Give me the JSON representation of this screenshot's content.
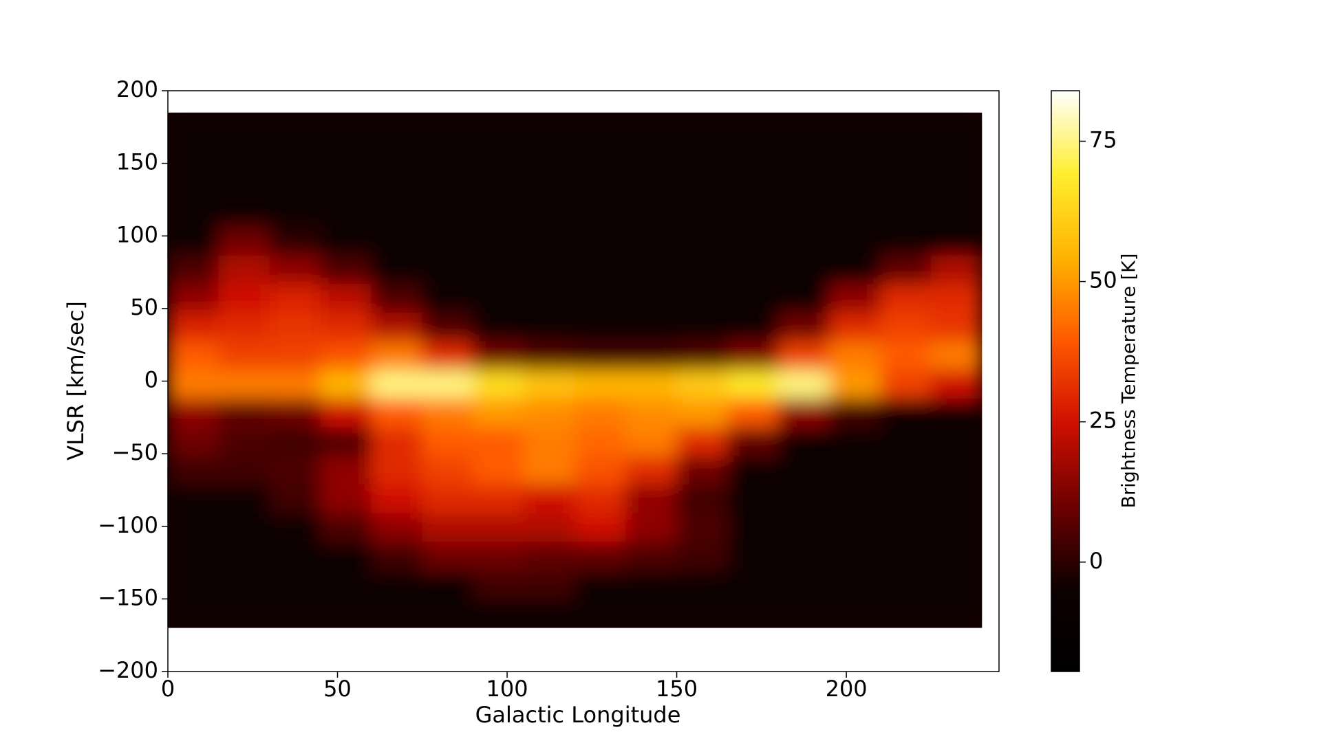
{
  "chart_data": {
    "type": "heatmap",
    "xlabel": "Galactic Longitude",
    "ylabel": "VLSR [km/sec]",
    "xlim": [
      0,
      245
    ],
    "ylim": [
      -200,
      200
    ],
    "xticks": [
      0,
      50,
      100,
      150,
      200
    ],
    "yticks": [
      {
        "value": -200,
        "label": "−200"
      },
      {
        "value": -150,
        "label": "−150"
      },
      {
        "value": -100,
        "label": "−100"
      },
      {
        "value": -50,
        "label": "−50"
      },
      0,
      50,
      100,
      150,
      200
    ],
    "extent": [
      0,
      240,
      -170,
      185
    ],
    "values": [
      [
        -5,
        -5,
        -5,
        -5,
        -5,
        -5,
        -5,
        -5,
        -5,
        -5,
        -5,
        -5,
        -5,
        -5,
        -5,
        -5
      ],
      [
        -5,
        -5,
        -5,
        -5,
        -5,
        -5,
        -5,
        -5,
        -5,
        -5,
        -5,
        -5,
        -5,
        -5,
        -5,
        -5
      ],
      [
        -5,
        -5,
        -5,
        -5,
        -5,
        -5,
        -5,
        -5,
        -5,
        -5,
        -5,
        -5,
        -5,
        -5,
        -5,
        -5
      ],
      [
        -5,
        -5,
        -5,
        -5,
        -5,
        -5,
        -5,
        -5,
        -5,
        -5,
        -5,
        -5,
        -5,
        -5,
        -5,
        -5
      ],
      [
        -5,
        10,
        0,
        -5,
        -5,
        -5,
        -5,
        -5,
        -5,
        -5,
        -5,
        -5,
        -5,
        -5,
        -5,
        -5
      ],
      [
        5,
        20,
        15,
        5,
        -5,
        -5,
        -5,
        -5,
        -5,
        -5,
        -5,
        -5,
        -5,
        -5,
        8,
        20
      ],
      [
        15,
        25,
        28,
        22,
        5,
        -5,
        -5,
        -5,
        -5,
        -5,
        -5,
        -5,
        -5,
        15,
        30,
        30
      ],
      [
        28,
        30,
        32,
        30,
        20,
        5,
        -5,
        -5,
        -5,
        -5,
        -5,
        -5,
        10,
        30,
        35,
        32
      ],
      [
        40,
        35,
        35,
        38,
        45,
        30,
        10,
        5,
        3,
        3,
        5,
        12,
        35,
        45,
        40,
        45
      ],
      [
        45,
        45,
        45,
        55,
        75,
        75,
        65,
        58,
        55,
        55,
        60,
        68,
        75,
        50,
        35,
        25
      ],
      [
        15,
        8,
        10,
        25,
        40,
        45,
        50,
        48,
        45,
        48,
        50,
        40,
        15,
        3,
        -5,
        -5
      ],
      [
        10,
        5,
        3,
        5,
        30,
        40,
        40,
        45,
        42,
        45,
        30,
        8,
        -5,
        -5,
        -5,
        -5
      ],
      [
        3,
        3,
        5,
        15,
        30,
        35,
        40,
        45,
        38,
        30,
        10,
        -5,
        -5,
        -5,
        -5,
        -5
      ],
      [
        -5,
        -5,
        3,
        15,
        25,
        30,
        30,
        25,
        30,
        15,
        3,
        -5,
        -5,
        -5,
        -5,
        -5
      ],
      [
        -5,
        -5,
        -5,
        5,
        15,
        20,
        20,
        20,
        25,
        15,
        5,
        -5,
        -5,
        -5,
        -5,
        -5
      ],
      [
        -5,
        -5,
        -5,
        -5,
        3,
        10,
        10,
        8,
        8,
        5,
        3,
        -5,
        -5,
        -5,
        -5,
        -5
      ],
      [
        -5,
        -5,
        -5,
        -5,
        -5,
        -5,
        3,
        3,
        -5,
        -5,
        -5,
        -5,
        -5,
        -5,
        -5,
        -5
      ],
      [
        -5,
        -5,
        -5,
        -5,
        -5,
        -5,
        -5,
        -5,
        -5,
        -5,
        -5,
        -5,
        -5,
        -5,
        -5,
        -5
      ]
    ],
    "colorbar": {
      "label": "Brightness Temperature [K]",
      "lim": [
        -19.5,
        84
      ],
      "ticks": [
        0,
        25,
        50,
        75
      ],
      "colors": [
        "#000000",
        "#0d0000",
        "#6e0000",
        "#d01000",
        "#ff5a00",
        "#ffb400",
        "#ffee30",
        "#ffffff"
      ]
    }
  }
}
